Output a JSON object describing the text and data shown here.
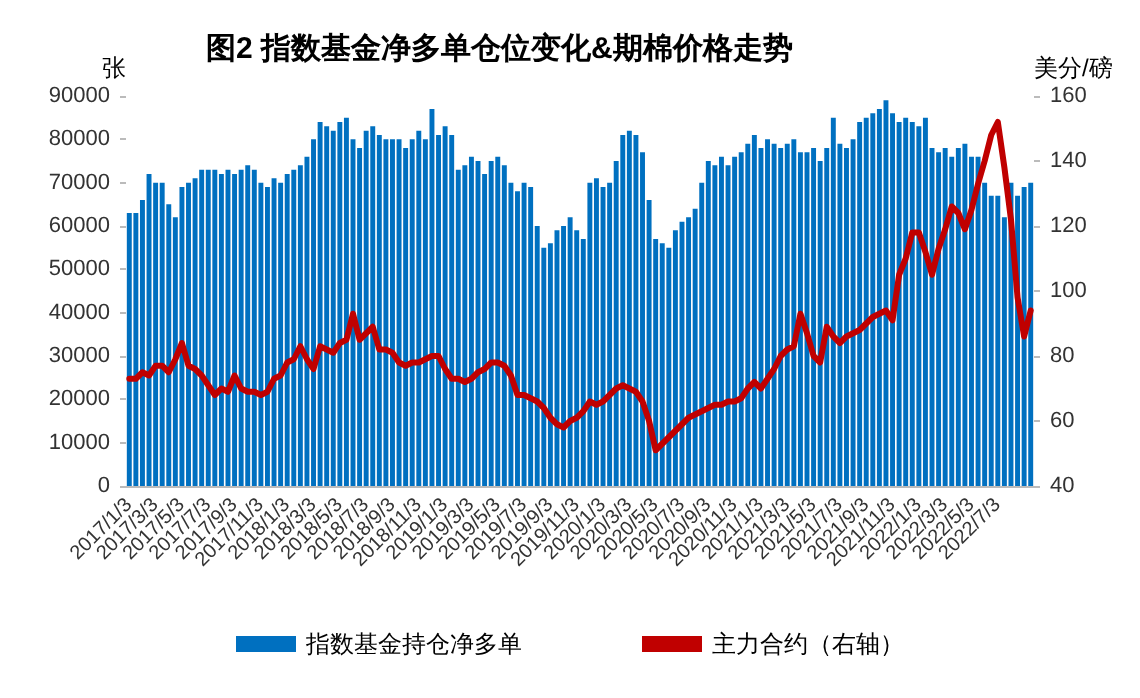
{
  "chart_data": {
    "type": "bar",
    "title": "图2 指数基金净多单仓位变化&期棉价格走势",
    "ylabel": "张",
    "y2label": "美分/磅",
    "categories": [
      "2017/1/3",
      null,
      null,
      null,
      "2017/3/3",
      null,
      null,
      null,
      "2017/5/3",
      null,
      null,
      null,
      "2017/7/3",
      null,
      null,
      null,
      "2017/9/3",
      null,
      null,
      null,
      "2017/11/3",
      null,
      null,
      null,
      "2018/1/3",
      null,
      null,
      null,
      "2018/3/3",
      null,
      null,
      null,
      "2018/5/3",
      null,
      null,
      null,
      "2018/7/3",
      null,
      null,
      null,
      "2018/9/3",
      null,
      null,
      null,
      "2018/11/3",
      null,
      null,
      null,
      "2019/1/3",
      null,
      null,
      null,
      "2019/3/3",
      null,
      null,
      null,
      "2019/5/3",
      null,
      null,
      null,
      "2019/7/3",
      null,
      null,
      null,
      "2019/9/3",
      null,
      null,
      null,
      "2019/11/3",
      null,
      null,
      null,
      "2020/1/3",
      null,
      null,
      null,
      "2020/3/3",
      null,
      null,
      null,
      "2020/5/3",
      null,
      null,
      null,
      "2020/7/3",
      null,
      null,
      null,
      "2020/9/3",
      null,
      null,
      null,
      "2020/11/3",
      null,
      null,
      null,
      "2021/1/3",
      null,
      null,
      null,
      "2021/3/3",
      null,
      null,
      null,
      "2021/5/3",
      null,
      null,
      null,
      "2021/7/3",
      null,
      null,
      null,
      "2021/9/3",
      null,
      null,
      null,
      "2021/11/3",
      null,
      null,
      null,
      "2022/1/3",
      null,
      null,
      null,
      "2022/3/3",
      null,
      null,
      null,
      "2022/5/3",
      null,
      null,
      null,
      "2022/7/3",
      null,
      null,
      null,
      null,
      null
    ],
    "series": [
      {
        "name": "指数基金持仓净多单",
        "type": "bar",
        "color": "#0070c0",
        "values": [
          63000,
          63000,
          66000,
          72000,
          70000,
          70000,
          65000,
          62000,
          69000,
          70000,
          71000,
          73000,
          73000,
          73000,
          72000,
          73000,
          72000,
          73000,
          74000,
          73000,
          70000,
          69000,
          71000,
          70000,
          72000,
          73000,
          74000,
          76000,
          80000,
          84000,
          83000,
          82000,
          84000,
          85000,
          80000,
          78000,
          82000,
          83000,
          81000,
          80000,
          80000,
          80000,
          78000,
          80000,
          82000,
          80000,
          87000,
          81000,
          83000,
          81000,
          73000,
          74000,
          76000,
          75000,
          72000,
          75000,
          76000,
          74000,
          70000,
          68000,
          70000,
          69000,
          60000,
          55000,
          56000,
          59000,
          60000,
          62000,
          59000,
          57000,
          70000,
          71000,
          69000,
          70000,
          75000,
          81000,
          82000,
          81000,
          77000,
          66000,
          57000,
          56000,
          55000,
          59000,
          61000,
          62000,
          64000,
          70000,
          75000,
          74000,
          76000,
          74000,
          76000,
          77000,
          79000,
          81000,
          78000,
          80000,
          79000,
          78000,
          79000,
          80000,
          77000,
          77000,
          78000,
          75000,
          78000,
          85000,
          79000,
          78000,
          80000,
          84000,
          85000,
          86000,
          87000,
          89000,
          86000,
          84000,
          85000,
          84000,
          83000,
          85000,
          78000,
          77000,
          78000,
          76000,
          78000,
          79000,
          76000,
          76000,
          70000,
          67000,
          67000,
          62000,
          70000,
          67000,
          69000,
          70000
        ]
      },
      {
        "name": "主力合约（右轴）",
        "type": "line",
        "axis": "y2",
        "color": "#c00000",
        "values": [
          73,
          73,
          75,
          74,
          77,
          77,
          75,
          79,
          84,
          77,
          76,
          74,
          71,
          68,
          70,
          69,
          74,
          70,
          69,
          69,
          68,
          69,
          73,
          74,
          78,
          79,
          83,
          79,
          76,
          83,
          82,
          81,
          84,
          85,
          93,
          85,
          87,
          89,
          82,
          82,
          81,
          78,
          77,
          78,
          78,
          79,
          80,
          80,
          76,
          73,
          73,
          72,
          73,
          75,
          76,
          78,
          78,
          77,
          74,
          68,
          68,
          67,
          66,
          64,
          61,
          59,
          58,
          60,
          61,
          63,
          66,
          65,
          66,
          68,
          70,
          71,
          70,
          69,
          66,
          60,
          51,
          53,
          55,
          57,
          59,
          61,
          62,
          63,
          64,
          65,
          65,
          66,
          66,
          67,
          70,
          72,
          70,
          73,
          76,
          80,
          82,
          83,
          93,
          87,
          80,
          78,
          89,
          86,
          84,
          86,
          87,
          88,
          90,
          92,
          93,
          94,
          91,
          105,
          110,
          118,
          118,
          112,
          105,
          113,
          119,
          126,
          124,
          119,
          125,
          133,
          140,
          148,
          152,
          138,
          122,
          98,
          86,
          94
        ]
      }
    ],
    "ylim": [
      0,
      90000
    ],
    "yticks": [
      0,
      10000,
      20000,
      30000,
      40000,
      50000,
      60000,
      70000,
      80000,
      90000
    ],
    "y2lim": [
      40,
      160
    ],
    "y2ticks": [
      40,
      60,
      80,
      100,
      120,
      140,
      160
    ],
    "legend": "bottom",
    "marker": "none",
    "line_style": "solid"
  }
}
